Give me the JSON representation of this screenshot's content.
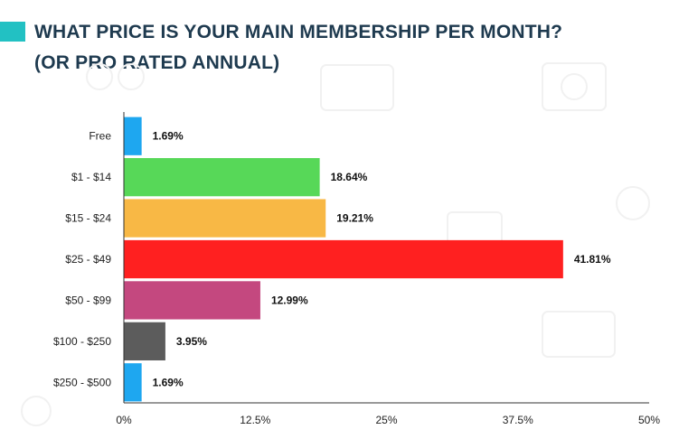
{
  "header": {
    "title_line1": "WHAT PRICE IS YOUR MAIN MEMBERSHIP PER MONTH?",
    "title_line2": "(OR PRO RATED ANNUAL)",
    "accent_color": "#22c1c3",
    "title_color": "#1e3a4f"
  },
  "chart_data": {
    "type": "bar",
    "orientation": "horizontal",
    "title": "WHAT PRICE IS YOUR MAIN MEMBERSHIP PER MONTH? (OR PRO RATED ANNUAL)",
    "categories": [
      "Free",
      "$1 - $14",
      "$15 - $24",
      "$25 - $49",
      "$50 - $99",
      "$100 - $250",
      "$250 - $500"
    ],
    "values": [
      1.69,
      18.64,
      19.21,
      41.81,
      12.99,
      3.95,
      1.69
    ],
    "value_labels": [
      "1.69%",
      "18.64%",
      "19.21%",
      "41.81%",
      "12.99%",
      "3.95%",
      "1.69%"
    ],
    "colors": [
      "#1ea7f0",
      "#57d858",
      "#f8b845",
      "#ff2020",
      "#c4487f",
      "#5c5c5c",
      "#1ea7f0"
    ],
    "xlim": [
      0,
      50
    ],
    "xticks": [
      0,
      12.5,
      25,
      37.5,
      50
    ],
    "xtick_labels": [
      "0%",
      "12.5%",
      "25%",
      "37.5%",
      "50%"
    ],
    "grid": false,
    "legend": "none"
  }
}
